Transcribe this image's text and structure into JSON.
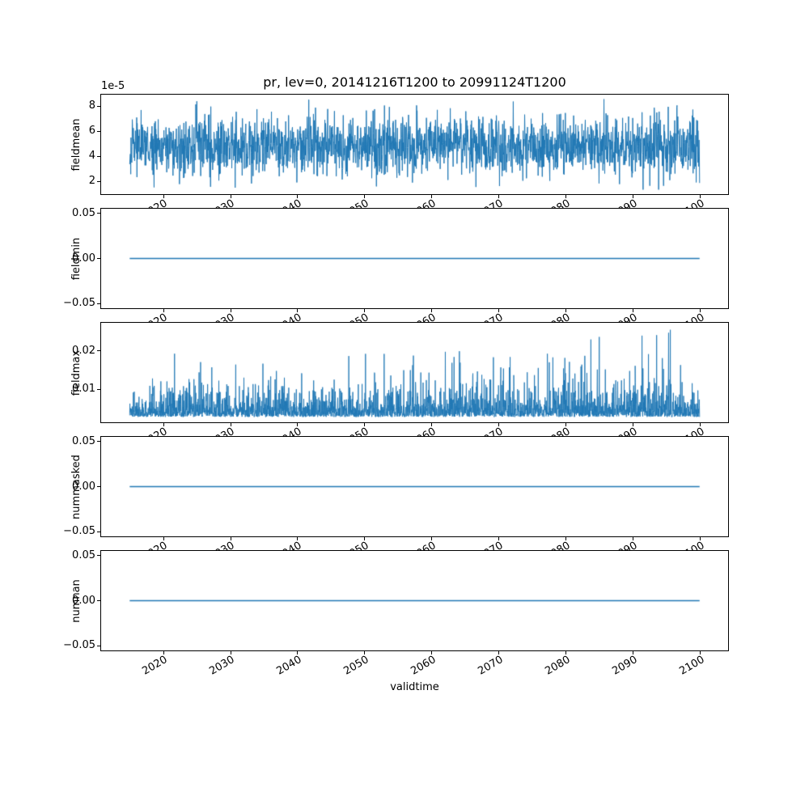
{
  "chart_data": {
    "type": "line",
    "title": "pr, lev=0, 20141216T1200 to 20991124T1200",
    "xlabel": "validtime",
    "grid": false,
    "legend": "none",
    "line_color": "#1f77b4",
    "xlim": [
      2010.7,
      2104.15
    ],
    "x_data_range": [
      2014.96,
      2099.9
    ],
    "xticks": [
      2020,
      2030,
      2040,
      2050,
      2060,
      2070,
      2080,
      2090,
      2100
    ],
    "xtick_labels": [
      "2020",
      "2030",
      "2040",
      "2050",
      "2060",
      "2070",
      "2080",
      "2090",
      "2100"
    ],
    "xtick_rotation_deg": 30,
    "subplots": [
      {
        "name": "fieldmean",
        "ylabel": "fieldmean",
        "offset_text": "1e-5",
        "ylim": [
          9.9e-06,
          8.91e-05
        ],
        "yticks": [
          2e-05,
          4e-05,
          6e-05,
          8e-05
        ],
        "ytick_labels": [
          "2",
          "4",
          "6",
          "8"
        ],
        "summary": {
          "mean": 4.85e-05,
          "min": 1.35e-05,
          "max": 8.55e-05
        },
        "series": {
          "kind": "gaussian_noise",
          "n": 2200,
          "mean": 4.85e-05,
          "sd": 1.15e-05,
          "clip": [
            1.35e-05,
            8.55e-05
          ],
          "seed": 42
        },
        "line_width": 1.0
      },
      {
        "name": "fieldmin",
        "ylabel": "fieldmin",
        "offset_text": "",
        "ylim": [
          -0.055,
          0.055
        ],
        "yticks": [
          0.05,
          0.0,
          -0.05
        ],
        "ytick_labels": [
          "0.05",
          "0.00",
          "−0.05"
        ],
        "summary": {
          "mean": 0.0,
          "min": 0.0,
          "max": 0.0
        },
        "series": {
          "kind": "constant",
          "value": 0.0,
          "n": 2,
          "seed": 1
        },
        "line_width": 1.5
      },
      {
        "name": "fieldmax",
        "ylabel": "fieldmax",
        "offset_text": "",
        "ylim": [
          0.0013,
          0.0274
        ],
        "yticks": [
          0.01,
          0.02
        ],
        "ytick_labels": [
          "0.01",
          "0.02"
        ],
        "summary": {
          "mean": 0.0055,
          "min": 0.0022,
          "max": 0.0262
        },
        "series": {
          "kind": "spiky_noise",
          "n": 3000,
          "base": 0.0027,
          "exp_mean": 0.0021,
          "spike_prob": 0.05,
          "spike_min": 0.009,
          "spike_max": 0.0262,
          "clip": [
            0.0022,
            0.0262
          ],
          "seed": 1337
        },
        "line_width": 0.9
      },
      {
        "name": "nummasked",
        "ylabel": "nummasked",
        "offset_text": "",
        "ylim": [
          -0.055,
          0.055
        ],
        "yticks": [
          0.05,
          0.0,
          -0.05
        ],
        "ytick_labels": [
          "0.05",
          "0.00",
          "−0.05"
        ],
        "summary": {
          "mean": 0.0,
          "min": 0.0,
          "max": 0.0
        },
        "series": {
          "kind": "constant",
          "value": 0.0,
          "n": 2,
          "seed": 2
        },
        "line_width": 1.5
      },
      {
        "name": "numnan",
        "ylabel": "numnan",
        "offset_text": "",
        "ylim": [
          -0.055,
          0.055
        ],
        "yticks": [
          0.05,
          0.0,
          -0.05
        ],
        "ytick_labels": [
          "0.05",
          "0.00",
          "−0.05"
        ],
        "summary": {
          "mean": 0.0,
          "min": 0.0,
          "max": 0.0
        },
        "series": {
          "kind": "constant",
          "value": 0.0,
          "n": 2,
          "seed": 3
        },
        "line_width": 1.5
      }
    ]
  }
}
